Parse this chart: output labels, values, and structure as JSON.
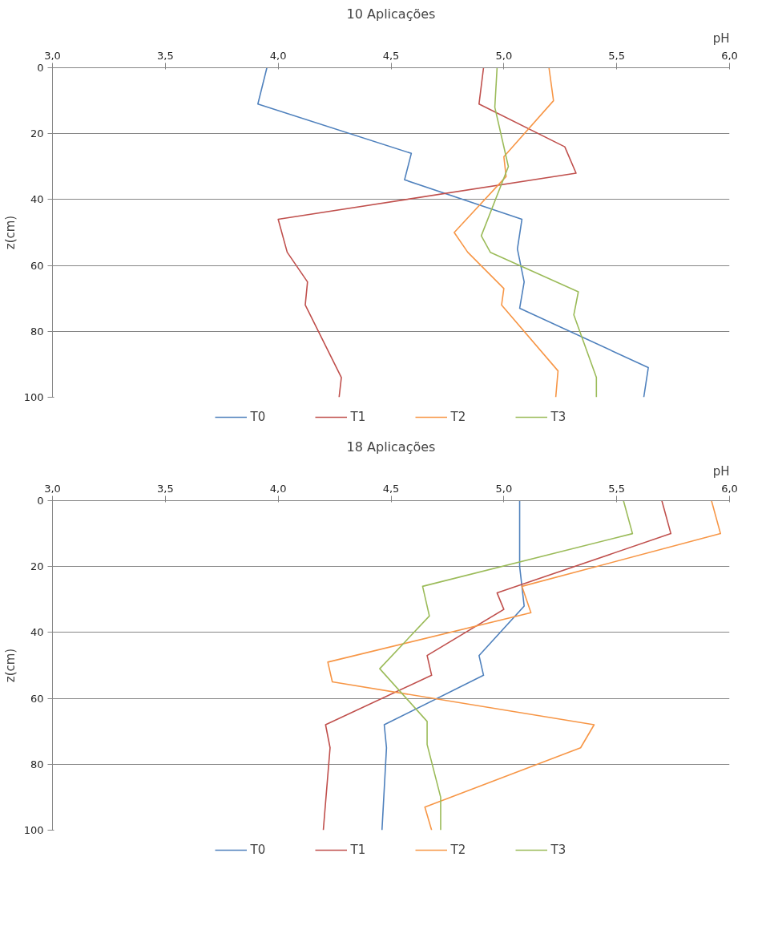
{
  "chart_data": [
    {
      "type": "line",
      "title": "10 Aplicações",
      "xlabel": "pH",
      "ylabel": "z(cm)",
      "xlim": [
        3,
        6
      ],
      "ylim": [
        100,
        0
      ],
      "xticks": [
        {
          "value": 3,
          "label": "3,0"
        },
        {
          "value": 3.5,
          "label": "3,5"
        },
        {
          "value": 4,
          "label": "4,0"
        },
        {
          "value": 4.5,
          "label": "4,5"
        },
        {
          "value": 5,
          "label": "5,0"
        },
        {
          "value": 5.5,
          "label": "5,5"
        },
        {
          "value": 6,
          "label": "6,0"
        }
      ],
      "yticks": [
        0,
        20,
        40,
        60,
        80,
        100
      ],
      "grid": "y",
      "legend": "bottom",
      "marker": "none",
      "line_style": "solid",
      "series": [
        {
          "name": "T0",
          "color": "#4f81bd",
          "x": [
            3.95,
            3.91,
            4.59,
            4.56,
            5.08,
            5.06,
            5.09,
            5.07,
            5.64,
            5.62
          ],
          "values": [
            0,
            11,
            26,
            34,
            46,
            55,
            65,
            73,
            91,
            100
          ]
        },
        {
          "name": "T1",
          "color": "#c0504d",
          "x": [
            4.91,
            4.89,
            5.27,
            5.32,
            4.0,
            4.04,
            4.13,
            4.12,
            4.28,
            4.27
          ],
          "values": [
            0,
            11,
            24,
            32,
            46,
            56,
            65,
            72,
            94,
            100
          ]
        },
        {
          "name": "T2",
          "color": "#f79646",
          "x": [
            5.2,
            5.22,
            5.0,
            5.01,
            4.78,
            4.84,
            5.0,
            4.99,
            5.24,
            5.23
          ],
          "values": [
            0,
            10,
            27,
            33,
            50,
            56,
            67,
            72,
            92,
            100
          ]
        },
        {
          "name": "T3",
          "color": "#9bbb59",
          "x": [
            4.97,
            4.96,
            5.02,
            4.9,
            4.94,
            5.33,
            5.31,
            5.41,
            5.41
          ],
          "values": [
            0,
            12,
            30,
            51,
            56,
            68,
            75,
            94,
            100
          ]
        }
      ]
    },
    {
      "type": "line",
      "title": "18 Aplicações",
      "xlabel": "pH",
      "ylabel": "z(cm)",
      "xlim": [
        3,
        6
      ],
      "ylim": [
        100,
        0
      ],
      "xticks": [
        {
          "value": 3,
          "label": "3,0"
        },
        {
          "value": 3.5,
          "label": "3,5"
        },
        {
          "value": 4,
          "label": "4,0"
        },
        {
          "value": 4.5,
          "label": "4,5"
        },
        {
          "value": 5,
          "label": "5,0"
        },
        {
          "value": 5.5,
          "label": "5,5"
        },
        {
          "value": 6,
          "label": "6,0"
        }
      ],
      "yticks": [
        0,
        20,
        40,
        60,
        80,
        100
      ],
      "grid": "y",
      "legend": "bottom",
      "marker": "none",
      "line_style": "solid",
      "series": [
        {
          "name": "T0",
          "color": "#4f81bd",
          "x": [
            5.07,
            5.07,
            5.07,
            5.09,
            4.89,
            4.91,
            4.47,
            4.48,
            4.46
          ],
          "values": [
            0,
            13,
            20,
            32,
            47,
            53,
            68,
            75,
            100
          ]
        },
        {
          "name": "T1",
          "color": "#c0504d",
          "x": [
            5.7,
            5.74,
            4.97,
            5.0,
            4.66,
            4.68,
            4.21,
            4.23,
            4.2
          ],
          "values": [
            0,
            10,
            28,
            33,
            47,
            53,
            68,
            75,
            100
          ]
        },
        {
          "name": "T2",
          "color": "#f79646",
          "x": [
            5.92,
            5.96,
            5.08,
            5.12,
            4.22,
            4.24,
            5.4,
            5.34,
            4.65,
            4.68
          ],
          "values": [
            0,
            10,
            26,
            34,
            49,
            55,
            68,
            75,
            93,
            100
          ]
        },
        {
          "name": "T3",
          "color": "#9bbb59",
          "x": [
            5.53,
            5.57,
            4.64,
            4.67,
            4.45,
            4.66,
            4.66,
            4.72,
            4.72
          ],
          "values": [
            0,
            10,
            26,
            35,
            51,
            67,
            74,
            90,
            100
          ]
        }
      ]
    }
  ]
}
